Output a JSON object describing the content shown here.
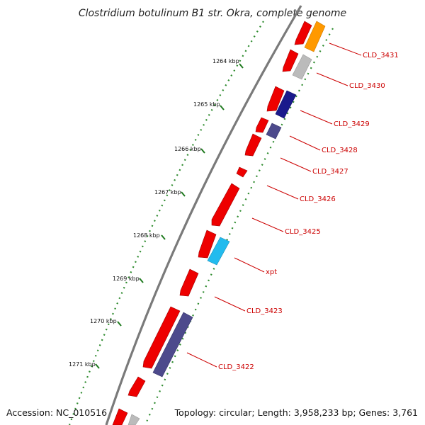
{
  "title": "Clostridium botulinum B1 str. Okra, complete genome",
  "footer": {
    "accession": "Accession: NC_010516",
    "topology": "Topology: circular; Length: 3,958,233 bp; Genes: 3,761"
  },
  "kbp_ticks": [
    "1264 kbp",
    "1265 kbp",
    "1266 kbp",
    "1267 kbp",
    "1268 kbp",
    "1269 kbp",
    "1270 kbp",
    "1271 kbp"
  ],
  "gene_labels": [
    "CLD_3431",
    "CLD_3430",
    "CLD_3429",
    "CLD_3428",
    "CLD_3427",
    "CLD_3426",
    "CLD_3425",
    "xpt",
    "CLD_3423",
    "CLD_3422"
  ],
  "colors": {
    "cds_red": "#ee0000",
    "orange": "#ff9900",
    "gray": "#bbbbbb",
    "navy": "#1a1a8c",
    "slate": "#4d4a8c",
    "cyan": "#22bbee",
    "label_red": "#cc0000",
    "tick_green": "#1f7a1f",
    "backbone": "#7a7a7a"
  }
}
